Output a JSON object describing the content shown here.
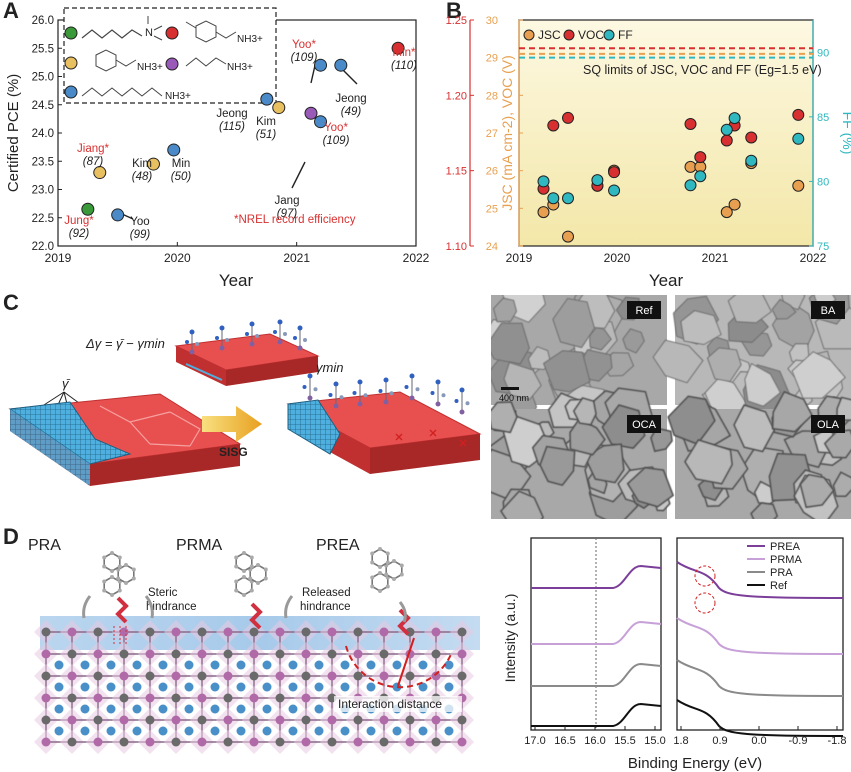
{
  "panels": {
    "a": "A",
    "b": "B",
    "c": "C",
    "d": "D"
  },
  "panel_a": {
    "ylabel": "Certified PCE (%)",
    "xlabel": "Year",
    "ylim": [
      22.0,
      26.0
    ],
    "xlim": [
      2019,
      2022
    ],
    "yticks": [
      "22.0",
      "22.5",
      "23.0",
      "23.5",
      "24.0",
      "24.5",
      "25.0",
      "25.5",
      "26.0"
    ],
    "xticks": [
      "2019",
      "2020",
      "2021",
      "2022"
    ],
    "note": "*NREL record efficiency",
    "labels": [
      {
        "name": "Jung*",
        "ref": "(92)",
        "red": true
      },
      {
        "name": "Yoo",
        "ref": "(99)",
        "red": false
      },
      {
        "name": "Jiang*",
        "ref": "(87)",
        "red": true
      },
      {
        "name": "Kim",
        "ref": "(48)",
        "red": false
      },
      {
        "name": "Min",
        "ref": "(50)",
        "red": false
      },
      {
        "name": "Jeong",
        "ref": "(115)",
        "red": false
      },
      {
        "name": "Kim",
        "ref": "(51)",
        "red": false
      },
      {
        "name": "Jang",
        "ref": "(97)",
        "red": false
      },
      {
        "name": "Yoo*",
        "ref": "(109)",
        "red": true
      },
      {
        "name": "Yoo*",
        "ref": "(109)",
        "red": true
      },
      {
        "name": "Jeong",
        "ref": "(49)",
        "red": false
      },
      {
        "name": "Min*",
        "ref": "(110)",
        "red": true
      }
    ],
    "legend_ions": [
      "NH3+",
      "NH3+",
      "NH3+",
      "NH3+"
    ]
  },
  "chart_data": [
    {
      "type": "scatter",
      "title": "",
      "xlabel": "Year",
      "ylabel": "Certified PCE (%)",
      "xlim": [
        2019,
        2022
      ],
      "ylim": [
        22.0,
        26.0
      ],
      "points": [
        {
          "x": 2019.25,
          "y": 22.65,
          "color": "#3a9a3a"
        },
        {
          "x": 2019.5,
          "y": 22.55,
          "color": "#4a8ac8"
        },
        {
          "x": 2019.35,
          "y": 23.3,
          "color": "#e8c060"
        },
        {
          "x": 2019.8,
          "y": 23.45,
          "color": "#e8c060"
        },
        {
          "x": 2019.97,
          "y": 23.7,
          "color": "#4a8ac8"
        },
        {
          "x": 2020.75,
          "y": 24.6,
          "color": "#4a8ac8"
        },
        {
          "x": 2020.85,
          "y": 24.45,
          "color": "#e8c060"
        },
        {
          "x": 2021.12,
          "y": 24.35,
          "color": "#9a5ab8"
        },
        {
          "x": 2021.2,
          "y": 24.2,
          "color": "#4a8ac8"
        },
        {
          "x": 2021.2,
          "y": 25.2,
          "color": "#4a8ac8"
        },
        {
          "x": 2021.37,
          "y": 25.2,
          "color": "#4a8ac8"
        },
        {
          "x": 2021.85,
          "y": 25.5,
          "color": "#d83030"
        }
      ]
    },
    {
      "type": "scatter",
      "title": "",
      "xlabel": "Year",
      "ylabel_jsc": "JSC (mA cm-2), VOC (V)",
      "ylabel_ff": "FF (%)",
      "xlim": [
        2019,
        2022
      ],
      "ylim_voc": [
        1.1,
        1.25
      ],
      "ylim_jsc": [
        24,
        30
      ],
      "ylim_ff": [
        75,
        92.5
      ],
      "voc_ticks": [
        "1.10",
        "1.15",
        "1.20",
        "1.25"
      ],
      "jsc_ticks": [
        "24",
        "25",
        "26",
        "27",
        "28",
        "29",
        "30"
      ],
      "ff_ticks": [
        "75",
        "80",
        "85",
        "90"
      ],
      "legend": [
        "JSC",
        "VOC",
        "FF"
      ],
      "sq_note": "SQ limits of JSC, VOC and FF (Eg=1.5 eV)",
      "sq_limits": {
        "jsc": 29.1,
        "voc": 29.25,
        "ff": 29.0
      },
      "jsc": [
        [
          2019.25,
          24.9
        ],
        [
          2019.35,
          25.1
        ],
        [
          2019.5,
          24.25
        ],
        [
          2019.8,
          25.6
        ],
        [
          2019.97,
          26.0
        ],
        [
          2020.75,
          26.1
        ],
        [
          2020.85,
          26.1
        ],
        [
          2021.12,
          24.9
        ],
        [
          2021.2,
          25.1
        ],
        [
          2021.37,
          26.2
        ],
        [
          2021.85,
          25.6
        ]
      ],
      "voc": [
        [
          2019.25,
          1.138
        ],
        [
          2019.35,
          1.18
        ],
        [
          2019.5,
          1.185
        ],
        [
          2019.8,
          1.14
        ],
        [
          2019.97,
          1.149
        ],
        [
          2020.75,
          1.181
        ],
        [
          2020.85,
          1.159
        ],
        [
          2021.12,
          1.17
        ],
        [
          2021.2,
          1.18
        ],
        [
          2021.37,
          1.172
        ],
        [
          2021.85,
          1.187
        ]
      ],
      "ff": [
        [
          2019.25,
          80.0
        ],
        [
          2019.35,
          78.7
        ],
        [
          2019.5,
          78.7
        ],
        [
          2019.8,
          80.1
        ],
        [
          2019.97,
          79.3
        ],
        [
          2020.75,
          79.7
        ],
        [
          2020.85,
          80.4
        ],
        [
          2021.12,
          84.0
        ],
        [
          2021.2,
          84.9
        ],
        [
          2021.37,
          81.6
        ],
        [
          2021.85,
          83.3
        ]
      ]
    },
    {
      "type": "line",
      "xlabel": "Binding Energy (eV)",
      "ylabel": "Intensity (a.u.)",
      "left_xticks": [
        "17.0",
        "16.5",
        "16.0",
        "15.5",
        "15.0"
      ],
      "right_xticks": [
        "1.8",
        "0.9",
        "0.0",
        "-0.9",
        "-1.8"
      ],
      "series": [
        {
          "name": "PREA",
          "color": "#7b3f9a"
        },
        {
          "name": "PRMA",
          "color": "#c7a0d8"
        },
        {
          "name": "PRA",
          "color": "#8a8a8a"
        },
        {
          "name": "Ref",
          "color": "#111111"
        }
      ]
    }
  ],
  "panel_c": {
    "equation": "Δγ = γ̄ − γmin",
    "gamma_bar": "γ̄",
    "gamma_min": "γmin",
    "arrow_label": "SISG",
    "sem": [
      {
        "label": "Ref",
        "scale": "400 nm"
      },
      {
        "label": "BA"
      },
      {
        "label": "OCA"
      },
      {
        "label": "OLA"
      }
    ]
  },
  "panel_d": {
    "molecules": [
      "PRA",
      "PRMA",
      "PREA"
    ],
    "steric": [
      "Steric",
      "hindrance"
    ],
    "released": [
      "Released",
      "hindrance"
    ],
    "interaction": "Interaction distance"
  }
}
